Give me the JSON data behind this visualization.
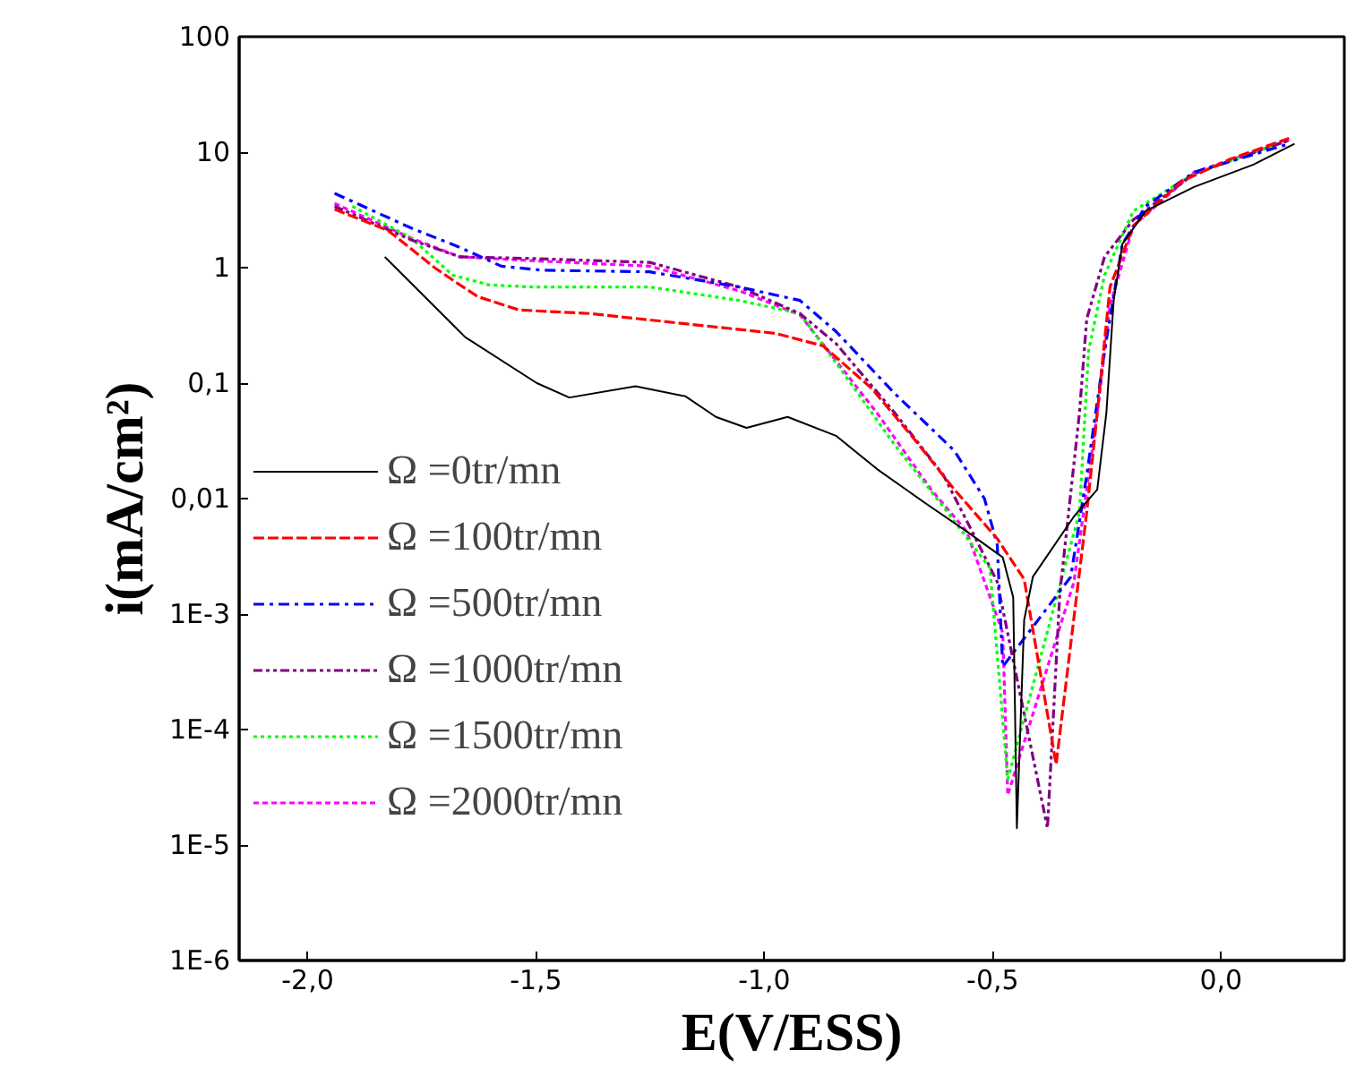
{
  "chart_data": {
    "type": "line",
    "xlabel": "E(V/ESS)",
    "ylabel": "i(mA/cm²)",
    "log": "y",
    "grid": false,
    "legend": "bottom left",
    "xlim": [
      -2.15,
      0.27
    ],
    "ylim": [
      1e-06,
      100
    ],
    "xticks": [
      {
        "value": -2.0,
        "label": "-2,0"
      },
      {
        "value": -1.5,
        "label": "-1,5"
      },
      {
        "value": -1.0,
        "label": "-1,0"
      },
      {
        "value": -0.5,
        "label": "-0,5"
      },
      {
        "value": 0.0,
        "label": "0,0"
      }
    ],
    "yticks": [
      {
        "value": 1e-06,
        "label": "1E-6"
      },
      {
        "value": 1e-05,
        "label": "1E-5"
      },
      {
        "value": 0.0001,
        "label": "1E-4"
      },
      {
        "value": 0.001,
        "label": "1E-3"
      },
      {
        "value": 0.01,
        "label": "0,01"
      },
      {
        "value": 0.1,
        "label": "0,1"
      },
      1,
      10,
      100
    ],
    "series": [
      {
        "name": "Ω =0tr/mn",
        "color": "#000000",
        "line_style": "solid",
        "x": [
          -1.831,
          -1.655,
          -1.498,
          -1.427,
          -1.282,
          -1.173,
          -1.106,
          -1.039,
          -0.949,
          -0.843,
          -0.753,
          -0.647,
          -0.557,
          -0.478,
          -0.455,
          -0.447,
          -0.431,
          -0.412,
          -0.322,
          -0.271,
          -0.251,
          -0.235,
          -0.216,
          -0.165,
          -0.059,
          0.071,
          0.161
        ],
        "values": [
          1.24,
          0.25,
          0.1,
          0.075,
          0.094,
          0.077,
          0.051,
          0.041,
          0.051,
          0.035,
          0.018,
          0.0091,
          0.0052,
          0.0031,
          0.0014,
          1.4e-05,
          0.00089,
          0.0021,
          0.007,
          0.012,
          0.055,
          0.52,
          1.6,
          3.1,
          5.0,
          7.8,
          11.8
        ]
      },
      {
        "name": "Ω =100tr/mn",
        "color": "#ff0000",
        "line_style": "dashed",
        "x": [
          -1.941,
          -1.824,
          -1.722,
          -1.667,
          -1.627,
          -1.537,
          -1.38,
          -1.184,
          -0.976,
          -0.871,
          -0.765,
          -0.675,
          -0.584,
          -0.49,
          -0.431,
          -0.361,
          -0.294,
          -0.271,
          -0.243,
          -0.192,
          -0.086,
          0.02,
          0.149
        ],
        "values": [
          3.2,
          2.1,
          1.0,
          0.71,
          0.56,
          0.43,
          0.4,
          0.33,
          0.27,
          0.21,
          0.09,
          0.034,
          0.012,
          0.0045,
          0.002,
          5e-05,
          0.0076,
          0.055,
          0.68,
          2.3,
          5.6,
          8.7,
          13.2
        ]
      },
      {
        "name": "Ω =500tr/mn",
        "color": "#0000ff",
        "line_style": "dashdot",
        "x": [
          -1.941,
          -1.773,
          -1.667,
          -1.576,
          -1.486,
          -1.251,
          -1.055,
          -0.922,
          -0.843,
          -0.714,
          -0.584,
          -0.518,
          -0.49,
          -0.478,
          -0.329,
          -0.294,
          -0.255,
          -0.216,
          -0.165,
          -0.059,
          0.149
        ],
        "values": [
          4.4,
          2.2,
          1.5,
          1.03,
          0.95,
          0.92,
          0.68,
          0.52,
          0.28,
          0.081,
          0.026,
          0.01,
          0.004,
          0.00035,
          0.0021,
          0.016,
          0.19,
          1.6,
          3.4,
          6.7,
          11.8
        ]
      },
      {
        "name": "Ω =1000tr/mn",
        "color": "#800080",
        "line_style": "dashdotdot",
        "x": [
          -1.941,
          -1.773,
          -1.667,
          -1.51,
          -1.251,
          -1.055,
          -0.922,
          -0.843,
          -0.714,
          -0.608,
          -0.545,
          -0.49,
          -0.38,
          -0.353,
          -0.31,
          -0.294,
          -0.255,
          -0.192,
          -0.059,
          0.149
        ],
        "values": [
          3.4,
          1.74,
          1.24,
          1.2,
          1.11,
          0.68,
          0.4,
          0.22,
          0.055,
          0.016,
          0.0052,
          0.0019,
          1.4e-05,
          0.0015,
          0.055,
          0.36,
          1.24,
          2.6,
          6.5,
          12.7
        ]
      },
      {
        "name": "Ω =1500tr/mn",
        "color": "#00ff00",
        "line_style": "dotted",
        "x": [
          -1.902,
          -1.773,
          -1.682,
          -1.604,
          -1.51,
          -1.251,
          -1.055,
          -0.922,
          -0.843,
          -0.714,
          -0.608,
          -0.506,
          -0.467,
          -0.31,
          -0.29,
          -0.255,
          -0.192,
          -0.059,
          0.149
        ],
        "values": [
          3.4,
          1.8,
          0.86,
          0.71,
          0.68,
          0.68,
          0.52,
          0.4,
          0.15,
          0.029,
          0.0085,
          0.0025,
          3.7e-05,
          0.0076,
          0.19,
          0.86,
          3.1,
          6.5,
          12.7
        ]
      },
      {
        "name": "Ω =2000tr/mn",
        "color": "#ff00ff",
        "line_style": "shortdash",
        "x": [
          -1.941,
          -1.773,
          -1.667,
          -1.51,
          -1.251,
          -1.055,
          -0.922,
          -0.753,
          -0.635,
          -0.557,
          -0.478,
          -0.467,
          -0.322,
          -0.271,
          -0.243,
          -0.192,
          -0.059,
          0.149
        ],
        "values": [
          3.6,
          1.8,
          1.24,
          1.15,
          1.03,
          0.63,
          0.39,
          0.055,
          0.012,
          0.0052,
          0.00069,
          2.7e-05,
          0.0019,
          0.055,
          0.47,
          2.3,
          6.7,
          12.7
        ]
      }
    ]
  }
}
